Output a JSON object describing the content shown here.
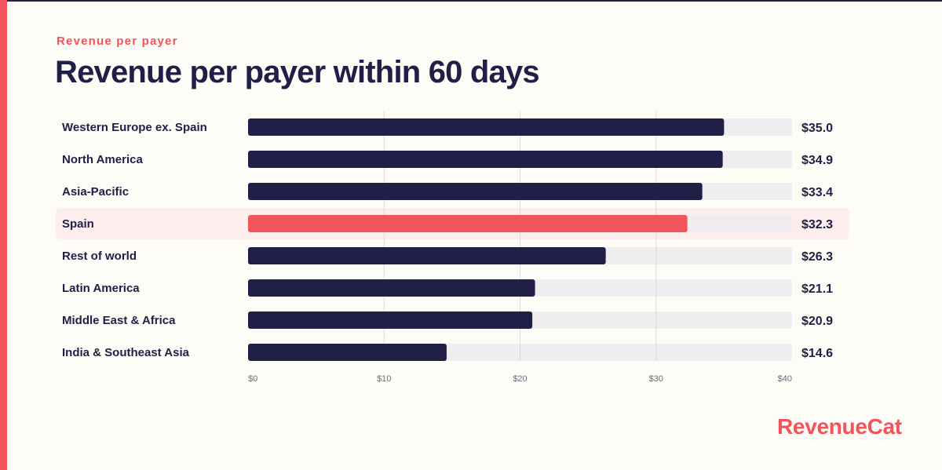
{
  "brand": {
    "name": "RevenueCat",
    "accent_color": "#f2545b",
    "dark_color": "#1f1f48",
    "track_color": "#efedf0",
    "highlight_row_color": "#fdeeed"
  },
  "header": {
    "eyebrow": "Revenue per payer",
    "title": "Revenue per payer within 60 days"
  },
  "chart_data": {
    "type": "bar",
    "orientation": "horizontal",
    "title": "Revenue per payer within 60 days",
    "xlabel": "",
    "ylabel": "",
    "xlim": [
      0,
      40
    ],
    "x_ticks": [
      0,
      10,
      20,
      30,
      40
    ],
    "x_tick_labels": [
      "$0",
      "$10",
      "$20",
      "$30",
      "$40"
    ],
    "grid": true,
    "categories": [
      "Western Europe ex. Spain",
      "North America",
      "Asia-Pacific",
      "Spain",
      "Rest of world",
      "Latin America",
      "Middle East & Africa",
      "India & Southeast Asia"
    ],
    "values": [
      35.0,
      34.9,
      33.4,
      32.3,
      26.3,
      21.1,
      20.9,
      14.6
    ],
    "value_labels": [
      "$35.0",
      "$34.9",
      "$33.4",
      "$32.3",
      "$26.3",
      "$21.1",
      "$20.9",
      "$14.6"
    ],
    "highlighted_category": "Spain"
  }
}
